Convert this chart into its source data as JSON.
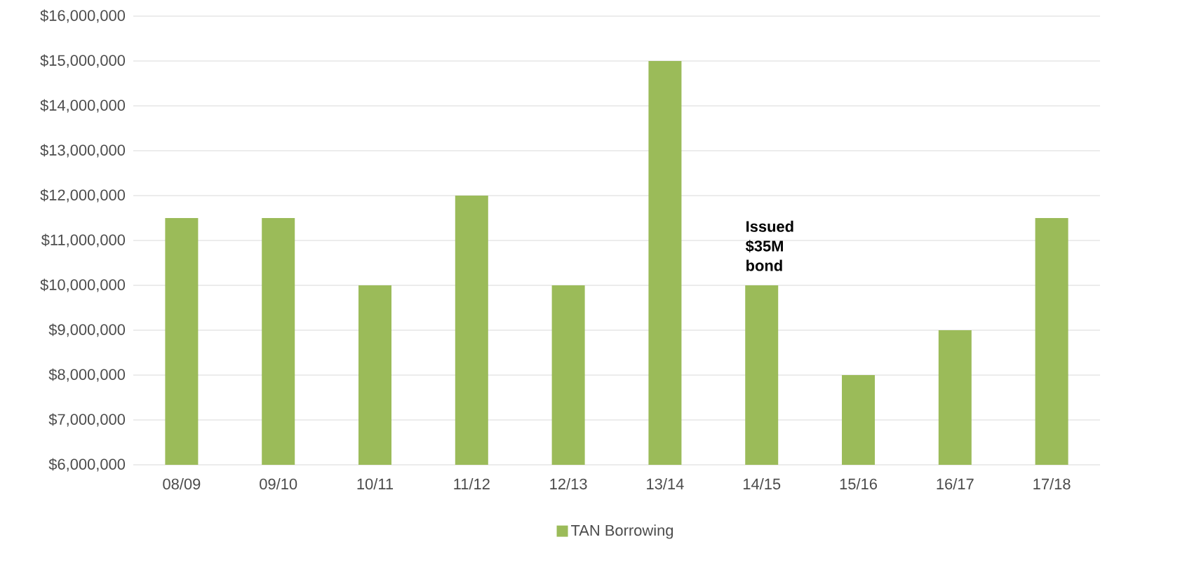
{
  "chart_data": {
    "type": "bar",
    "categories": [
      "08/09",
      "09/10",
      "10/11",
      "11/12",
      "12/13",
      "13/14",
      "14/15",
      "15/16",
      "16/17",
      "17/18"
    ],
    "series": [
      {
        "name": "TAN Borrowing",
        "color": "#9bbb59",
        "values": [
          11500000,
          11500000,
          10000000,
          12000000,
          10000000,
          15000000,
          10000000,
          8000000,
          9000000,
          11500000
        ]
      }
    ],
    "ylim": [
      6000000,
      16000000
    ],
    "yticks": [
      {
        "value": 6000000,
        "label": "$6,000,000"
      },
      {
        "value": 7000000,
        "label": "$7,000,000"
      },
      {
        "value": 8000000,
        "label": "$8,000,000"
      },
      {
        "value": 9000000,
        "label": "$9,000,000"
      },
      {
        "value": 10000000,
        "label": "$10,000,000"
      },
      {
        "value": 11000000,
        "label": "$11,000,000"
      },
      {
        "value": 12000000,
        "label": "$12,000,000"
      },
      {
        "value": 13000000,
        "label": "$13,000,000"
      },
      {
        "value": 14000000,
        "label": "$14,000,000"
      },
      {
        "value": 15000000,
        "label": "$15,000,000"
      },
      {
        "value": 16000000,
        "label": "$16,000,000"
      }
    ],
    "grid": "y",
    "legend": "bottom",
    "annotations": [
      {
        "text": "Issued $35M bond",
        "x": "14/15",
        "y": 10000000
      }
    ]
  }
}
